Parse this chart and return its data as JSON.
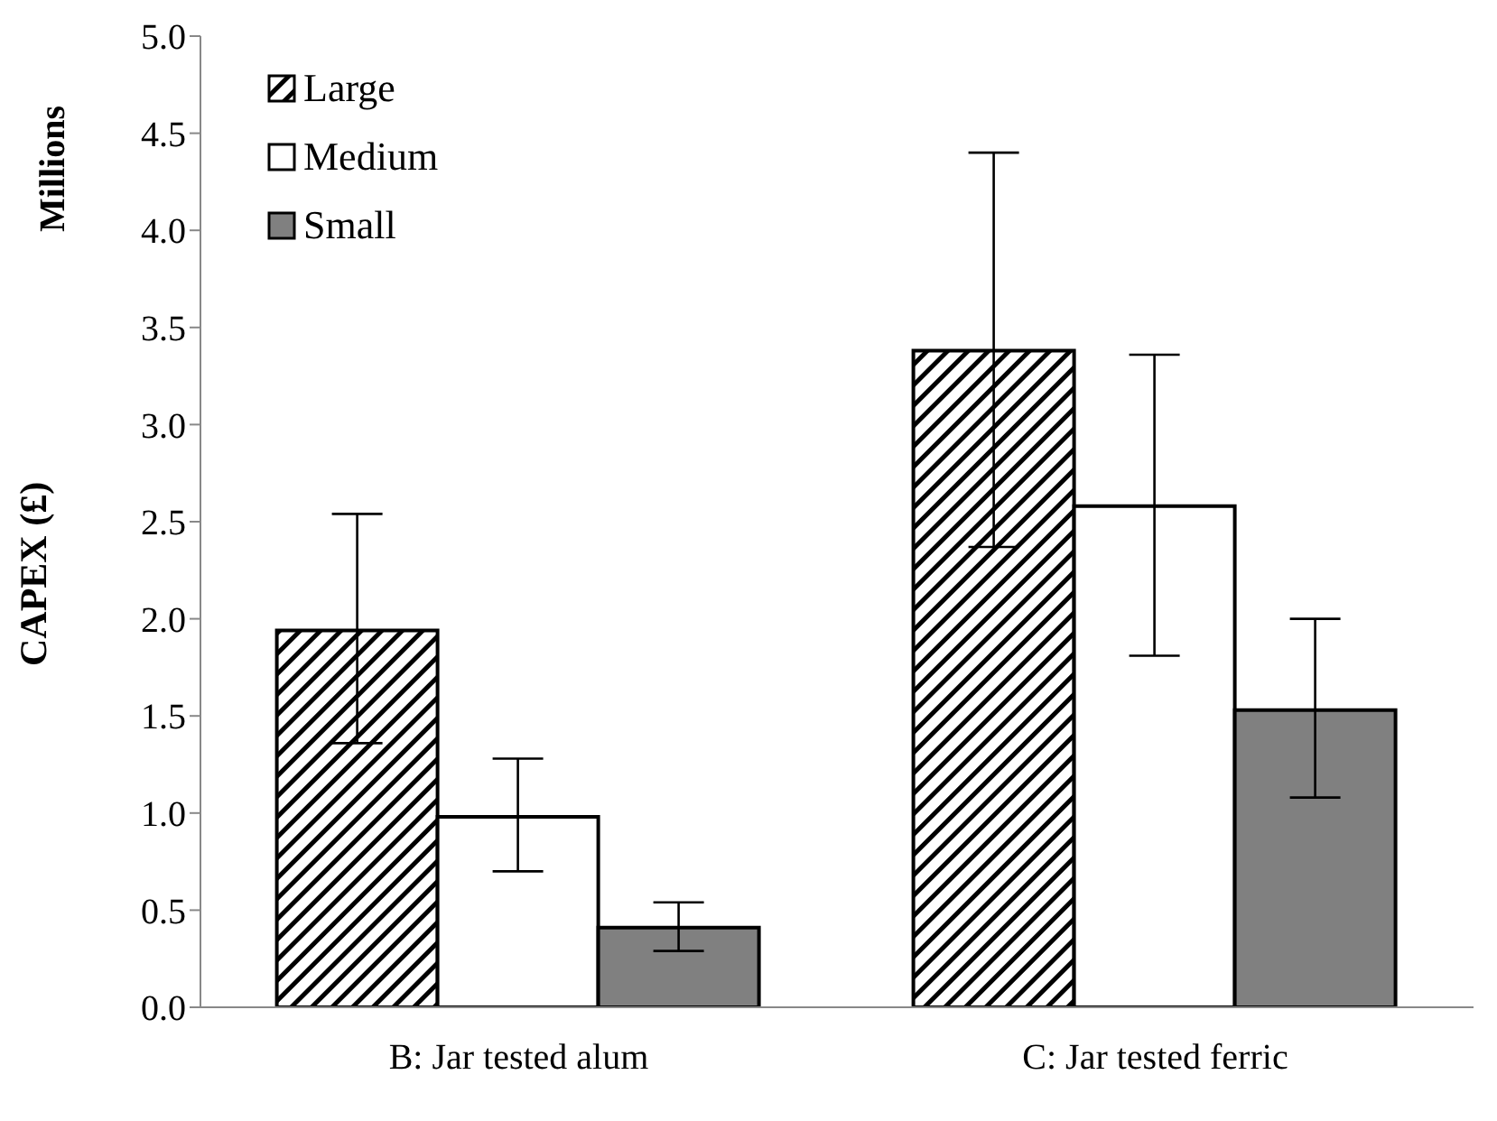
{
  "chart_data": {
    "type": "bar",
    "ylabel": "CAPEX (£)",
    "annotations": [
      "Millions"
    ],
    "categories": [
      "B: Jar tested alum",
      "C: Jar tested ferric"
    ],
    "series": [
      {
        "name": "Large",
        "color": "#000000",
        "values": [
          1.94,
          3.38
        ],
        "errors": [
          [
            1.36,
            2.54
          ],
          [
            2.37,
            4.4
          ]
        ]
      },
      {
        "name": "Medium",
        "color": "#ffffff",
        "values": [
          0.98,
          2.58
        ],
        "errors": [
          [
            0.7,
            1.28
          ],
          [
            1.81,
            3.36
          ]
        ]
      },
      {
        "name": "Small",
        "color": "#808080",
        "values": [
          0.41,
          1.53
        ],
        "errors": [
          [
            0.29,
            0.54
          ],
          [
            1.08,
            2.0
          ]
        ]
      }
    ],
    "ylim": [
      0,
      5
    ],
    "yticks": [
      {
        "value": 0,
        "label": "0.0"
      },
      {
        "value": 0.5,
        "label": "0.5"
      },
      {
        "value": 1,
        "label": "1.0"
      },
      {
        "value": 1.5,
        "label": "1.5"
      },
      {
        "value": 2,
        "label": "2.0"
      },
      {
        "value": 2.5,
        "label": "2.5"
      },
      {
        "value": 3,
        "label": "3.0"
      },
      {
        "value": 3.5,
        "label": "3.5"
      },
      {
        "value": 4,
        "label": "4.0"
      },
      {
        "value": 4.5,
        "label": "4.5"
      },
      {
        "value": 5,
        "label": "5.0"
      }
    ],
    "grid": false,
    "legend": "top left"
  }
}
